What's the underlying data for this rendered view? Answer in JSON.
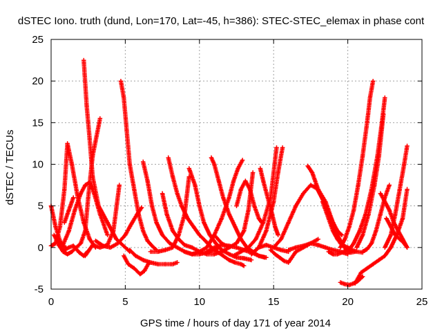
{
  "chart_data": {
    "type": "scatter",
    "title": "dSTEC Iono. truth (dund, Lon=170, Lat=-45, h=386): STEC-STEC_elemax in phase cont",
    "xlabel": "GPS time / hours of day 171 of year 2014",
    "ylabel": "dSTEC  / TECUs",
    "xlim": [
      0,
      25
    ],
    "ylim": [
      -5,
      25
    ],
    "xticks": [
      0,
      5,
      10,
      15,
      20,
      25
    ],
    "yticks": [
      -5,
      0,
      5,
      10,
      15,
      20,
      25
    ],
    "grid": true,
    "marker": "+",
    "color": "#ff0000",
    "series": [
      {
        "x": [
          0.0,
          0.3,
          0.6,
          0.85,
          1.0
        ],
        "y": [
          5.0,
          2.5,
          0.8,
          0.1,
          0.0
        ]
      },
      {
        "x": [
          0.0,
          0.3,
          0.6,
          0.9,
          1.1,
          1.4,
          1.8,
          2.2,
          2.6,
          3.0
        ],
        "y": [
          0.2,
          0.5,
          2.5,
          7.0,
          12.5,
          10.0,
          6.0,
          3.0,
          1.0,
          0.0
        ]
      },
      {
        "x": [
          0.2,
          0.5,
          0.8,
          1.1,
          1.4,
          1.7,
          2.0,
          2.3,
          2.5,
          2.8,
          3.3
        ],
        "y": [
          1.5,
          0.5,
          -0.5,
          -0.8,
          -0.5,
          0.0,
          0.5,
          2.0,
          6.0,
          11.0,
          15.5
        ]
      },
      {
        "x": [
          0.5,
          0.8,
          1.2,
          1.5,
          1.9,
          2.2,
          2.5
        ],
        "y": [
          0.3,
          -0.4,
          0.0,
          0.2,
          -0.6,
          -1.0,
          -0.4
        ]
      },
      {
        "x": [
          0.8,
          1.2,
          1.6,
          2.0,
          2.3,
          2.6,
          2.9,
          3.3,
          3.8
        ],
        "y": [
          0.3,
          2.0,
          4.5,
          6.5,
          7.5,
          7.8,
          6.5,
          4.0,
          1.5
        ]
      },
      {
        "x": [
          2.2,
          2.4,
          2.6,
          2.8,
          3.2,
          3.8,
          4.4,
          5.0,
          5.3
        ],
        "y": [
          22.5,
          17.0,
          13.0,
          8.5,
          5.0,
          3.0,
          1.0,
          0.0,
          -0.5
        ]
      },
      {
        "x": [
          0.9,
          1.2,
          1.5
        ],
        "y": [
          3.0,
          4.5,
          6.0
        ]
      },
      {
        "x": [
          2.3,
          2.8,
          3.3,
          3.8,
          4.2,
          4.6
        ],
        "y": [
          -1.0,
          0.3,
          0.0,
          0.3,
          2.0,
          7.5
        ]
      },
      {
        "x": [
          3.0,
          3.5,
          4.0,
          4.5,
          5.0,
          5.4,
          5.8,
          6.1
        ],
        "y": [
          0.8,
          0.2,
          0.0,
          0.5,
          1.5,
          2.8,
          4.0,
          4.8
        ]
      },
      {
        "x": [
          4.7,
          4.9,
          5.1,
          5.3,
          5.6,
          5.9,
          6.2,
          6.5,
          6.8,
          7.1
        ],
        "y": [
          20.0,
          18.0,
          14.0,
          10.0,
          7.0,
          4.0,
          2.0,
          0.8,
          0.2,
          -0.3
        ]
      },
      {
        "x": [
          4.9,
          5.2,
          5.6,
          6.0,
          6.3,
          6.6
        ],
        "y": [
          -1.0,
          -2.0,
          -2.5,
          -3.2,
          -2.8,
          -1.8
        ]
      },
      {
        "x": [
          6.2,
          6.5,
          6.8,
          7.1,
          7.5,
          8.0,
          8.5,
          9.0,
          9.5,
          10.0,
          10.5,
          11.0,
          11.3
        ],
        "y": [
          10.3,
          8.0,
          5.0,
          3.0,
          1.5,
          0.5,
          0.0,
          -0.5,
          -0.8,
          -0.8,
          -0.6,
          -0.3,
          0.0
        ]
      },
      {
        "x": [
          5.3,
          5.7,
          6.2,
          6.7,
          7.2,
          7.7,
          8.2,
          8.5
        ],
        "y": [
          -0.3,
          -1.0,
          -1.5,
          -1.8,
          -2.0,
          -2.0,
          -2.0,
          -1.8
        ]
      },
      {
        "x": [
          6.7,
          7.2,
          7.7,
          8.2,
          8.6,
          9.0,
          9.3
        ],
        "y": [
          -0.5,
          -0.5,
          -0.3,
          0.0,
          1.5,
          4.0,
          8.5
        ]
      },
      {
        "x": [
          7.5,
          7.8,
          8.2,
          8.6,
          9.0,
          9.5,
          10.0,
          10.5,
          11.0,
          11.5,
          12.0
        ],
        "y": [
          6.5,
          4.0,
          2.0,
          1.0,
          0.3,
          0.0,
          -0.5,
          -0.8,
          -0.8,
          -0.5,
          0.0
        ]
      },
      {
        "x": [
          7.9,
          8.2,
          8.5,
          8.8,
          9.2,
          9.6,
          10.0,
          10.4,
          10.8,
          11.2,
          11.6,
          12.0,
          12.4,
          12.8,
          13.0
        ],
        "y": [
          10.8,
          8.5,
          6.5,
          5.0,
          3.5,
          2.5,
          1.5,
          0.8,
          0.0,
          -0.5,
          -1.0,
          -1.5,
          -1.8,
          -2.0,
          -2.2
        ]
      },
      {
        "x": [
          9.3,
          9.7,
          10.0,
          10.3,
          10.7,
          11.1,
          11.5,
          12.0,
          12.5,
          13.0,
          13.5
        ],
        "y": [
          9.5,
          7.5,
          5.0,
          3.0,
          1.5,
          0.5,
          -0.3,
          -0.8,
          -1.2,
          -1.3,
          -1.5
        ]
      },
      {
        "x": [
          9.0,
          9.5,
          10.0,
          10.5,
          11.0,
          11.5,
          12.0,
          12.3,
          12.6,
          12.9
        ],
        "y": [
          -0.5,
          -0.8,
          -0.5,
          0.0,
          1.5,
          3.5,
          6.0,
          8.0,
          9.5,
          10.5
        ]
      },
      {
        "x": [
          10.8,
          11.0,
          11.3,
          11.6,
          12.0,
          12.4,
          12.8,
          13.2,
          13.6,
          14.0,
          14.4
        ],
        "y": [
          10.8,
          10.0,
          8.0,
          6.0,
          4.0,
          2.5,
          1.0,
          0.0,
          -0.5,
          -1.0,
          -1.2
        ]
      },
      {
        "x": [
          10.5,
          11.0,
          11.5,
          12.0,
          12.5,
          13.0,
          13.5,
          14.0,
          14.5
        ],
        "y": [
          -0.5,
          0.0,
          0.3,
          0.2,
          0.0,
          -0.3,
          -0.6,
          -1.0,
          -1.2
        ]
      },
      {
        "x": [
          11.0,
          11.5,
          12.0,
          12.5,
          13.0,
          13.3,
          13.6
        ],
        "y": [
          1.5,
          0.5,
          0.0,
          0.5,
          2.0,
          4.5,
          9.0
        ]
      },
      {
        "x": [
          12.5,
          12.8,
          13.1,
          13.4,
          13.7,
          14.0,
          14.2
        ],
        "y": [
          5.0,
          7.0,
          8.0,
          7.0,
          5.0,
          3.5,
          3.0
        ]
      },
      {
        "x": [
          12.3,
          12.8,
          13.3,
          13.8,
          14.3,
          14.8,
          15.2
        ],
        "y": [
          -1.0,
          -0.5,
          0.0,
          1.0,
          3.0,
          6.0,
          12.0
        ]
      },
      {
        "x": [
          13.5,
          14.0,
          14.5,
          15.0,
          15.3,
          15.6
        ],
        "y": [
          -0.8,
          0.0,
          2.0,
          5.5,
          9.0,
          12.0
        ]
      },
      {
        "x": [
          14.1,
          14.3,
          14.6,
          14.9,
          15.1,
          15.3
        ],
        "y": [
          9.5,
          8.0,
          6.0,
          4.0,
          2.5,
          1.5
        ]
      },
      {
        "x": [
          14.0,
          14.5,
          15.0,
          15.5,
          16.0
        ],
        "y": [
          0.0,
          0.3,
          0.0,
          -0.3,
          -0.5
        ]
      },
      {
        "x": [
          14.8,
          15.1,
          15.4,
          15.7,
          16.0,
          16.5,
          17.0,
          17.5,
          18.0
        ],
        "y": [
          -0.3,
          -0.8,
          -1.2,
          -1.6,
          -1.8,
          -0.5,
          0.0,
          0.5,
          1.0
        ]
      },
      {
        "x": [
          15.0,
          15.5,
          16.0,
          16.5,
          17.0,
          17.5,
          18.0,
          18.5,
          19.0,
          19.5
        ],
        "y": [
          0.0,
          1.0,
          3.0,
          5.0,
          6.5,
          7.5,
          7.0,
          5.5,
          3.0,
          0.5
        ]
      },
      {
        "x": [
          16.0,
          16.5,
          17.0,
          17.5,
          18.0,
          18.5,
          19.0,
          19.5,
          20.0
        ],
        "y": [
          -0.3,
          0.0,
          0.2,
          0.5,
          0.3,
          0.0,
          -0.3,
          -0.5,
          -0.8
        ]
      },
      {
        "x": [
          17.3,
          17.6,
          18.0,
          18.5,
          19.0,
          19.3,
          19.6,
          19.9,
          20.2,
          20.5
        ],
        "y": [
          9.8,
          9.0,
          7.0,
          5.0,
          3.0,
          1.5,
          0.5,
          -0.3,
          -0.6,
          -0.5
        ]
      },
      {
        "x": [
          17.8,
          18.1,
          18.4,
          18.7,
          19.0,
          19.3,
          19.6
        ],
        "y": [
          7.5,
          6.5,
          5.5,
          4.0,
          3.0,
          2.0,
          1.5
        ]
      },
      {
        "x": [
          18.3,
          18.7,
          19.0,
          19.3,
          19.6,
          20.0,
          20.3,
          20.6,
          21.0
        ],
        "y": [
          5.5,
          3.5,
          2.0,
          1.0,
          0.3,
          0.0,
          -0.3,
          -0.5,
          -0.6
        ]
      },
      {
        "x": [
          18.7,
          19.0,
          19.3,
          19.6,
          20.0
        ],
        "y": [
          -0.5,
          -0.8,
          -0.8,
          -0.6,
          -0.3
        ]
      },
      {
        "x": [
          19.5,
          19.8,
          20.1,
          20.4,
          20.7,
          21.0
        ],
        "y": [
          -4.2,
          -4.4,
          -4.5,
          -4.3,
          -4.0,
          -3.5
        ]
      },
      {
        "x": [
          20.5,
          20.9,
          21.3,
          21.7,
          22.1,
          22.5,
          22.9,
          23.3,
          23.7,
          24.0
        ],
        "y": [
          -4.3,
          -3.0,
          -2.5,
          -2.0,
          -1.5,
          -1.0,
          0.0,
          1.5,
          3.5,
          7.0
        ]
      },
      {
        "x": [
          19.5,
          19.8,
          20.1,
          20.4,
          20.7,
          21.0,
          21.3,
          21.5,
          21.7
        ],
        "y": [
          0.0,
          1.0,
          2.5,
          4.5,
          7.5,
          11.0,
          15.0,
          18.0,
          20.0
        ]
      },
      {
        "x": [
          20.0,
          20.4,
          20.8,
          21.2,
          21.6,
          22.0,
          22.3,
          22.5
        ],
        "y": [
          -0.5,
          0.5,
          2.0,
          4.0,
          7.0,
          11.0,
          15.0,
          18.0
        ]
      },
      {
        "x": [
          20.6,
          21.0,
          21.4,
          21.8,
          22.1,
          22.4
        ],
        "y": [
          0.0,
          1.5,
          4.0,
          7.5,
          11.0,
          16.0
        ]
      },
      {
        "x": [
          21.0,
          21.3,
          21.6,
          21.9,
          22.2,
          22.5,
          22.8
        ],
        "y": [
          -0.5,
          -0.2,
          0.5,
          2.0,
          4.0,
          6.0,
          7.5
        ]
      },
      {
        "x": [
          22.2,
          22.5,
          22.8,
          23.1,
          23.4,
          23.7,
          24.0
        ],
        "y": [
          6.5,
          5.5,
          4.5,
          3.0,
          2.0,
          1.0,
          0.0
        ]
      },
      {
        "x": [
          22.6,
          22.9,
          23.2,
          23.5,
          23.8,
          24.0
        ],
        "y": [
          3.5,
          2.5,
          1.5,
          1.0,
          0.5,
          0.0
        ]
      },
      {
        "x": [
          22.5,
          22.9,
          23.2,
          23.5,
          23.8,
          24.0
        ],
        "y": [
          0.0,
          1.5,
          4.0,
          7.0,
          10.0,
          12.2
        ]
      }
    ]
  }
}
